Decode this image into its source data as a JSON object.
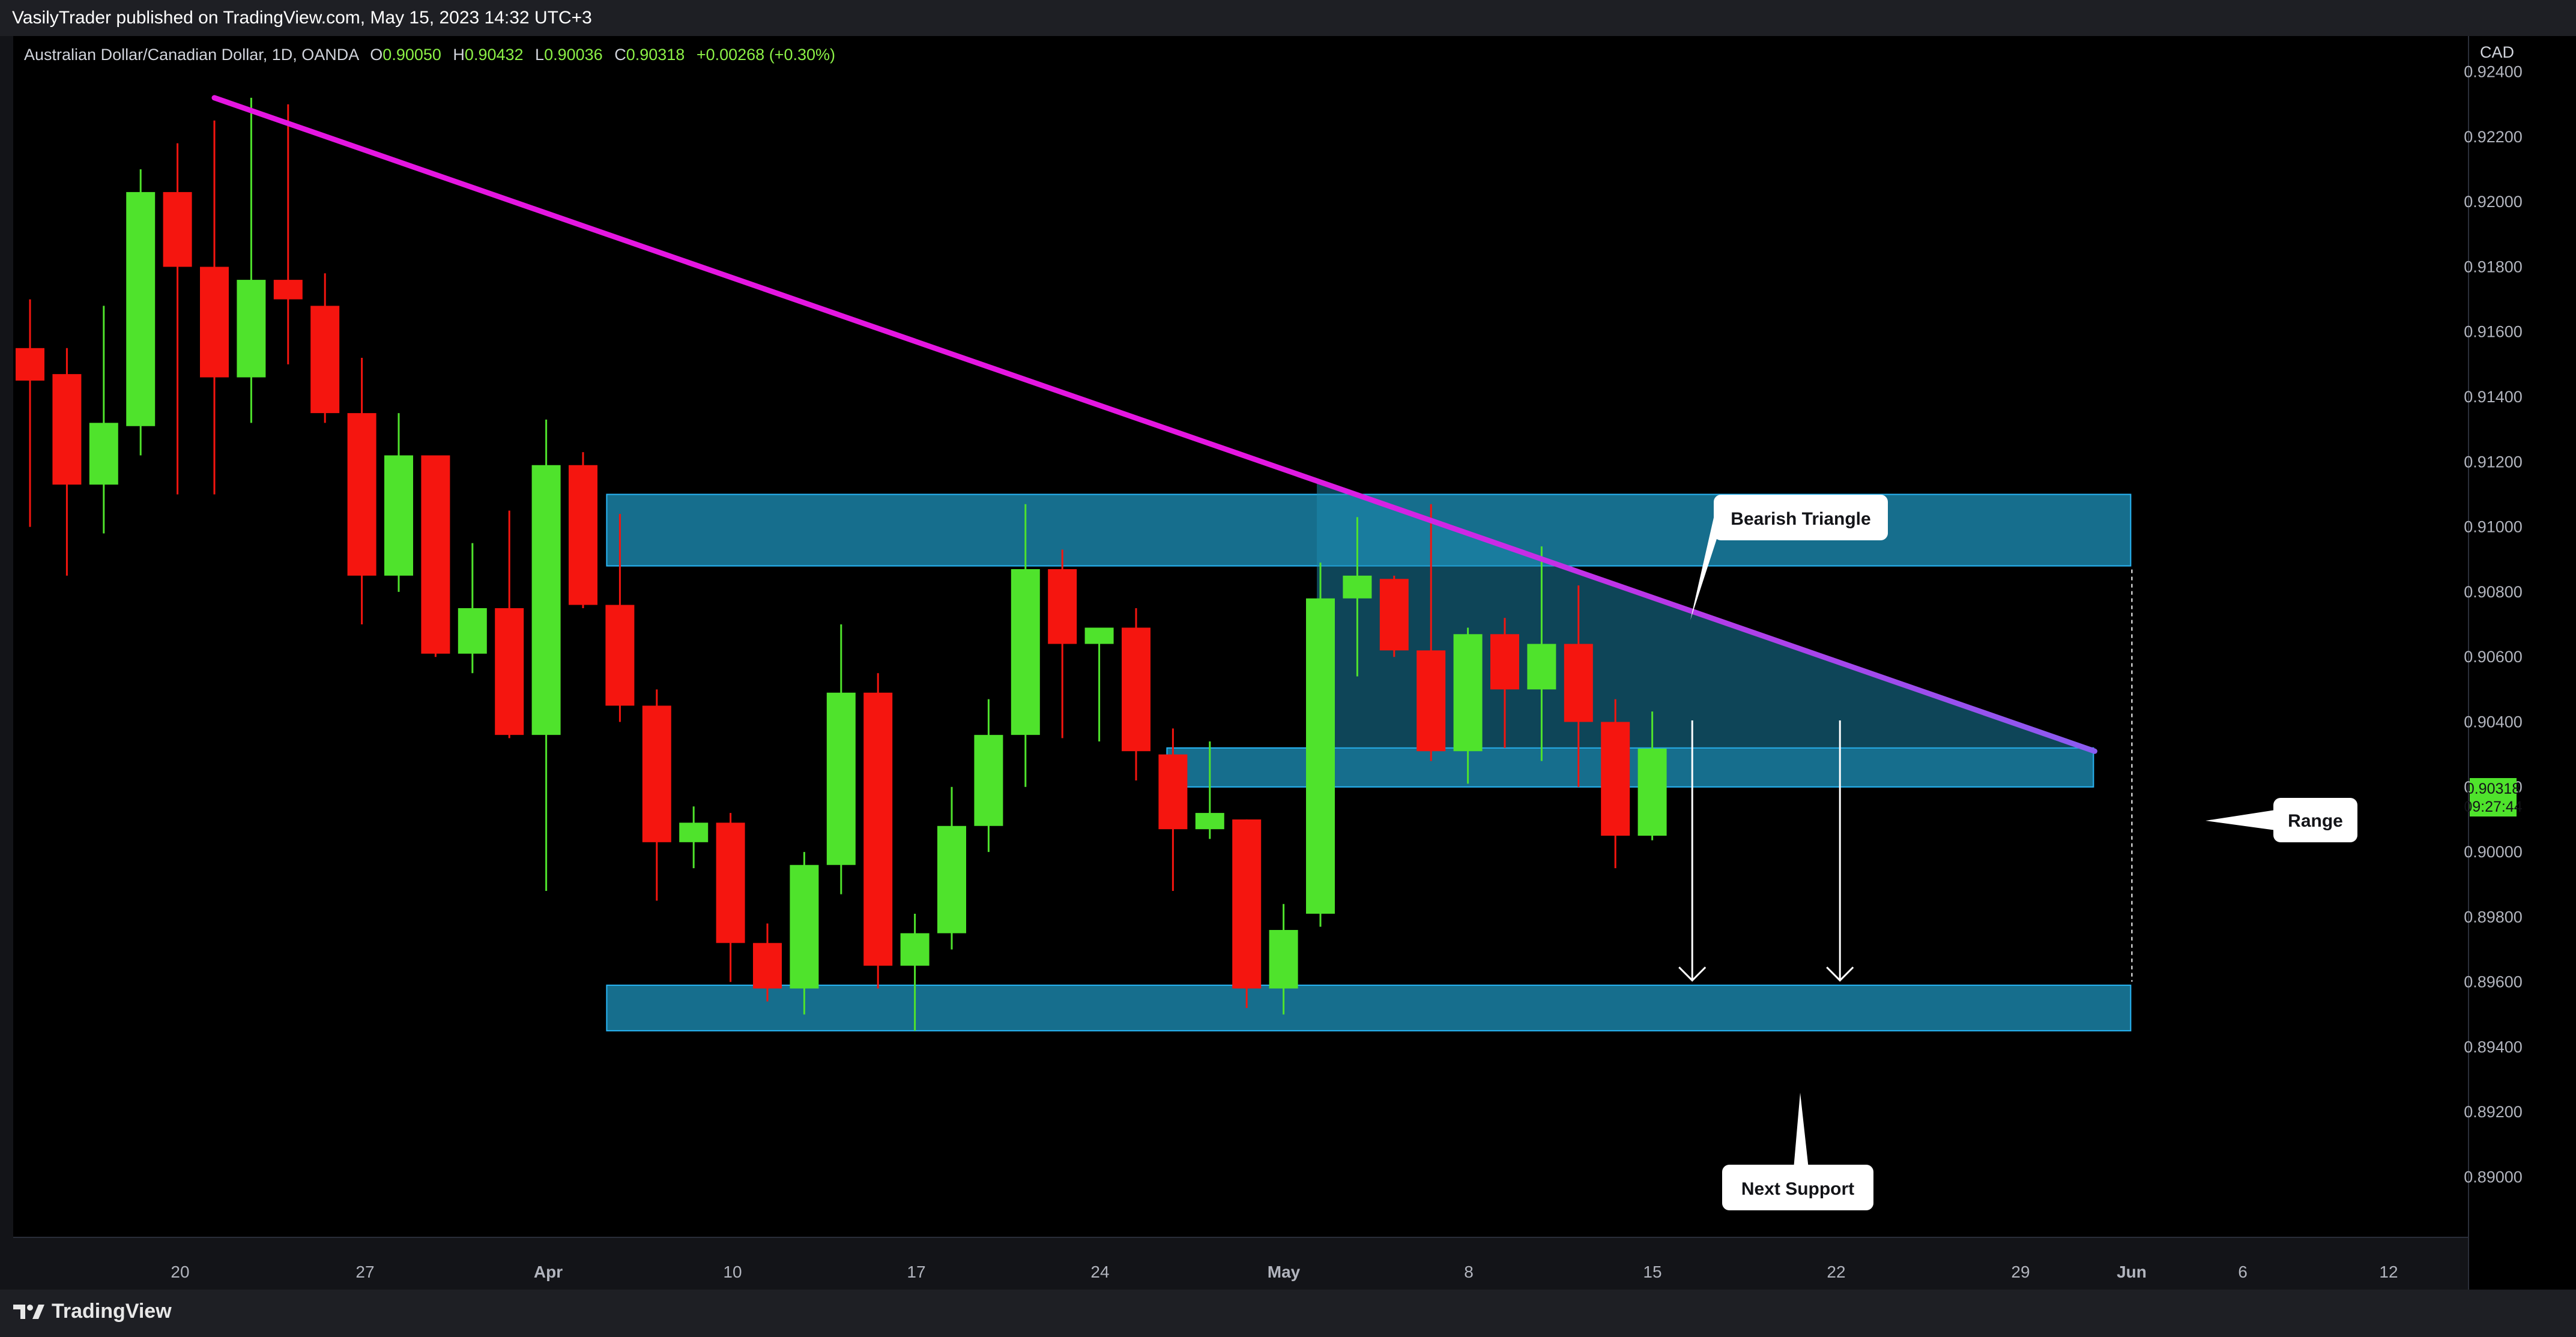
{
  "header": {
    "publish_line": "VasilyTrader published on TradingView.com, May 15, 2023 14:32 UTC+3"
  },
  "legend": {
    "symbol": "Australian Dollar/Canadian Dollar, 1D, OANDA",
    "open_label": "O",
    "open": "0.90050",
    "high_label": "H",
    "high": "0.90432",
    "low_label": "L",
    "low": "0.90036",
    "close_label": "C",
    "close": "0.90318",
    "change": "+0.00268 (+0.30%)"
  },
  "price_axis": {
    "currency": "CAD",
    "ticks": [
      "0.92400",
      "0.92200",
      "0.92000",
      "0.91800",
      "0.91600",
      "0.91400",
      "0.91200",
      "0.91000",
      "0.90800",
      "0.90600",
      "0.90400",
      "0.90200",
      "0.90000",
      "0.89800",
      "0.89600",
      "0.89400",
      "0.89200",
      "0.89000"
    ],
    "last_price": "0.90318",
    "countdown": "09:27:44"
  },
  "time_axis": {
    "ticks": [
      "20",
      "27",
      "Apr",
      "10",
      "17",
      "24",
      "May",
      "8",
      "15",
      "22",
      "29",
      "Jun",
      "6",
      "12"
    ]
  },
  "annotations": {
    "bearish_triangle": "Bearish Triangle",
    "range": "Range",
    "next_support": "Next Support"
  },
  "footer": {
    "brand": "TradingView"
  },
  "colors": {
    "background": "#000000",
    "up": "#4fe32c",
    "down": "#f5150f",
    "trendline": "#e516e1",
    "zone": "#1b8ab0",
    "triangle": "#1b8ab0"
  },
  "chart_data": {
    "type": "candlestick",
    "title": "Australian Dollar/Canadian Dollar, 1D, OANDA",
    "ylim": [
      0.8882,
      0.9251
    ],
    "ohlc": [
      [
        "Mar 15",
        0.9155,
        0.917,
        0.91,
        0.9145
      ],
      [
        "Mar 16",
        0.9147,
        0.9155,
        0.9085,
        0.9113
      ],
      [
        "Mar 17",
        0.9113,
        0.9168,
        0.9098,
        0.9132
      ],
      [
        "Mar 20",
        0.9131,
        0.921,
        0.9122,
        0.9203
      ],
      [
        "Mar 21",
        0.9203,
        0.9218,
        0.911,
        0.918
      ],
      [
        "Mar 22",
        0.918,
        0.9225,
        0.911,
        0.9146
      ],
      [
        "Mar 23",
        0.9146,
        0.9232,
        0.9132,
        0.9176
      ],
      [
        "Mar 24",
        0.9176,
        0.923,
        0.915,
        0.917
      ],
      [
        "Mar 27",
        0.9168,
        0.9178,
        0.9132,
        0.9135
      ],
      [
        "Mar 28",
        0.9135,
        0.9152,
        0.907,
        0.9085
      ],
      [
        "Mar 29",
        0.9085,
        0.9135,
        0.908,
        0.9122
      ],
      [
        "Mar 30",
        0.9122,
        0.9122,
        0.906,
        0.9061
      ],
      [
        "Mar 31",
        0.9061,
        0.9095,
        0.9055,
        0.9075
      ],
      [
        "Apr 3",
        0.9075,
        0.9105,
        0.9035,
        0.9036
      ],
      [
        "Apr 4",
        0.9036,
        0.9133,
        0.8988,
        0.9119
      ],
      [
        "Apr 5",
        0.9119,
        0.9123,
        0.9075,
        0.9076
      ],
      [
        "Apr 6",
        0.9076,
        0.9104,
        0.904,
        0.9045
      ],
      [
        "Apr 7",
        0.9045,
        0.905,
        0.8985,
        0.9003
      ],
      [
        "Apr 10",
        0.9003,
        0.9014,
        0.8995,
        0.9009
      ],
      [
        "Apr 11",
        0.9009,
        0.9012,
        0.896,
        0.8972
      ],
      [
        "Apr 12",
        0.8972,
        0.8978,
        0.8954,
        0.8958
      ],
      [
        "Apr 13",
        0.8958,
        0.9,
        0.895,
        0.8996
      ],
      [
        "Apr 14",
        0.8996,
        0.907,
        0.8987,
        0.9049
      ],
      [
        "Apr 17",
        0.9049,
        0.9055,
        0.8958,
        0.8965
      ],
      [
        "Apr 18",
        0.8965,
        0.8981,
        0.8945,
        0.8975
      ],
      [
        "Apr 19",
        0.8975,
        0.902,
        0.897,
        0.9008
      ],
      [
        "Apr 20",
        0.9008,
        0.9047,
        0.9,
        0.9036
      ],
      [
        "Apr 21",
        0.9036,
        0.9107,
        0.902,
        0.9087
      ],
      [
        "Apr 24",
        0.9087,
        0.9093,
        0.9035,
        0.9064
      ],
      [
        "Apr 25",
        0.9064,
        0.9069,
        0.9034,
        0.9069
      ],
      [
        "Apr 26",
        0.9069,
        0.9075,
        0.9022,
        0.9031
      ],
      [
        "Apr 27",
        0.903,
        0.9038,
        0.8988,
        0.9007
      ],
      [
        "Apr 28",
        0.9007,
        0.9034,
        0.9004,
        0.9012
      ],
      [
        "May 1",
        0.901,
        0.901,
        0.8952,
        0.8958
      ],
      [
        "May 2",
        0.8958,
        0.8984,
        0.895,
        0.8976
      ],
      [
        "May 3",
        0.8981,
        0.9089,
        0.8977,
        0.9078
      ],
      [
        "May 4",
        0.9078,
        0.9103,
        0.9054,
        0.9085
      ],
      [
        "May 5",
        0.9084,
        0.9085,
        0.906,
        0.9062
      ],
      [
        "May 8",
        0.9062,
        0.9107,
        0.9028,
        0.9031
      ],
      [
        "May 9",
        0.9031,
        0.9069,
        0.9021,
        0.9067
      ],
      [
        "May 10",
        0.9067,
        0.9072,
        0.9032,
        0.905
      ],
      [
        "May 11",
        0.905,
        0.9094,
        0.9028,
        0.9064
      ],
      [
        "May 12",
        0.9064,
        0.9082,
        0.902,
        0.904
      ],
      [
        "May 15",
        0.904,
        0.9047,
        0.8995,
        0.9005
      ],
      [
        "May 16",
        0.9005,
        0.90432,
        0.90036,
        0.90318
      ]
    ],
    "trendline": [
      [
        "Mar 22",
        0.9232
      ],
      [
        "Jun 1",
        0.9031
      ]
    ],
    "resistance_zone": [
      0.9088,
      0.911
    ],
    "range_zone": [
      0.902,
      0.9032
    ],
    "support_zone": [
      0.8945,
      0.8959
    ]
  }
}
